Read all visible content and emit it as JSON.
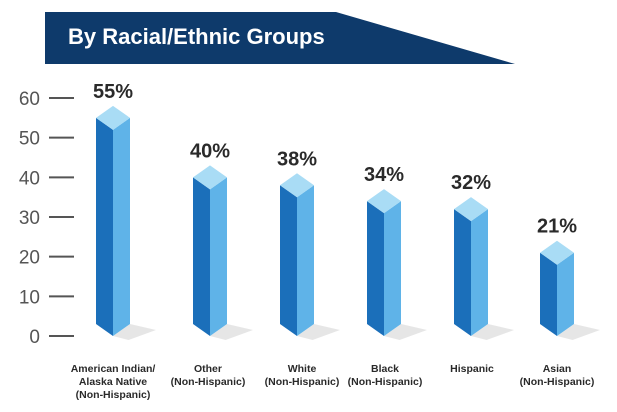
{
  "title": "By Racial/Ethnic Groups",
  "colors": {
    "banner": "#0e3a6b",
    "bar_front": "#1b6fba",
    "bar_side": "#5fb3e8",
    "bar_top": "#a9dcf5",
    "shadow": "#d6d6d6",
    "axis_text": "#555555",
    "label_text": "#2a2a2a"
  },
  "chart_data": {
    "type": "bar",
    "title": "By Racial/Ethnic Groups",
    "xlabel": "",
    "ylabel": "",
    "ylim": [
      0,
      60
    ],
    "yticks": [
      0,
      10,
      20,
      30,
      40,
      50,
      60
    ],
    "grid": false,
    "categories": [
      [
        "American Indian/",
        "Alaska Native",
        "(Non-Hispanic)"
      ],
      [
        "Other",
        "(Non-Hispanic)"
      ],
      [
        "White",
        "(Non-Hispanic)"
      ],
      [
        "Black",
        "(Non-Hispanic)"
      ],
      [
        "Hispanic"
      ],
      [
        "Asian",
        "(Non-Hispanic)"
      ]
    ],
    "values": [
      55,
      40,
      38,
      34,
      32,
      21
    ],
    "value_labels": [
      "55%",
      "40%",
      "38%",
      "34%",
      "32%",
      "21%"
    ]
  }
}
